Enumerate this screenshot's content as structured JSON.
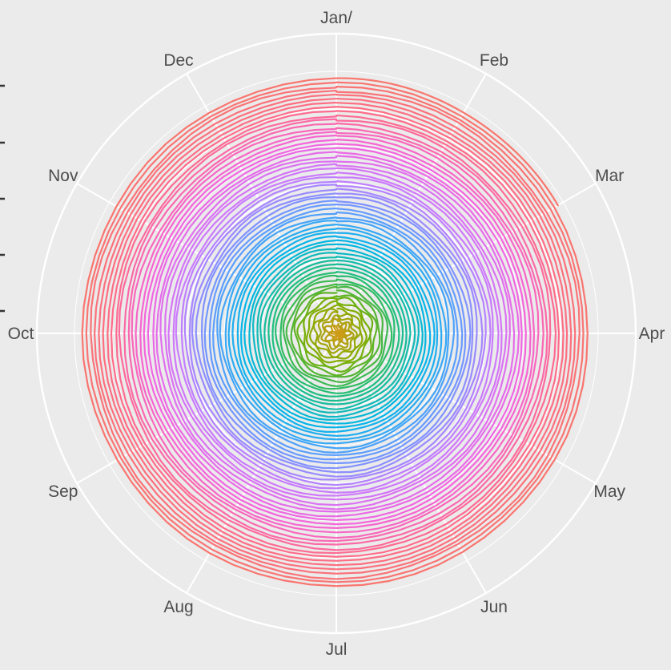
{
  "chart_data": {
    "type": "line",
    "coordinate_system": "polar",
    "angular_axis_labels": [
      "Jan/",
      "Feb",
      "Mar",
      "Apr",
      "May",
      "Jun",
      "Jul",
      "Aug",
      "Sep",
      "Oct",
      "Nov",
      "Dec"
    ],
    "spiral": {
      "start_month": "Jan",
      "end_month": "Mar",
      "approx_turns": 65
    },
    "colors": {
      "panel_background": "#ebebeb",
      "grid": "#ffffff",
      "axis_text": "#4d4d4d",
      "series_palette": [
        "#d19a1a",
        "#7cae00",
        "#1fbf7a",
        "#00b6e8",
        "#619cff",
        "#c77cff",
        "#f464e0",
        "#ff6c8a",
        "#f8766d"
      ]
    },
    "grid": true,
    "legend": "none"
  }
}
